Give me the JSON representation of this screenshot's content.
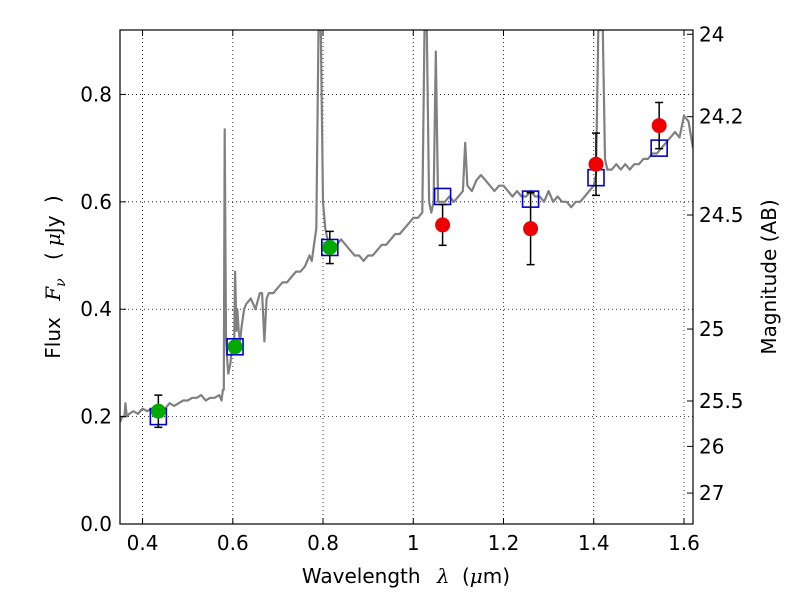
{
  "chart_data": {
    "type": "scatter",
    "xlabel": {
      "text": "Wavelength",
      "symbol": "λ",
      "unit_open": "(",
      "unit_mu": "μ",
      "unit_rest": "m)"
    },
    "ylabel": {
      "text": "Flux",
      "symbol": "F",
      "subscript": "ν",
      "unit_open": "(",
      "unit_mu": "μ",
      "unit_rest": "Jy",
      "unit_close": ")"
    },
    "y2label": "Magnitude (AB)",
    "xlim": [
      0.35,
      1.62
    ],
    "ylim": [
      0.0,
      0.92
    ],
    "grid": true,
    "x_ticks": [
      {
        "value": 0.4,
        "label": "0.4"
      },
      {
        "value": 0.6,
        "label": "0.6"
      },
      {
        "value": 0.8,
        "label": "0.8"
      },
      {
        "value": 1.0,
        "label": "1"
      },
      {
        "value": 1.2,
        "label": "1.2"
      },
      {
        "value": 1.4,
        "label": "1.4"
      },
      {
        "value": 1.6,
        "label": "1.6"
      }
    ],
    "y_ticks": [
      {
        "value": 0.0,
        "label": "0.0"
      },
      {
        "value": 0.2,
        "label": "0.2"
      },
      {
        "value": 0.4,
        "label": "0.4"
      },
      {
        "value": 0.6,
        "label": "0.6"
      },
      {
        "value": 0.8,
        "label": "0.8"
      }
    ],
    "y2_ticks": [
      {
        "value": 24,
        "label": "24"
      },
      {
        "value": 24.2,
        "label": "24.2"
      },
      {
        "value": 24.5,
        "label": "24.5"
      },
      {
        "value": 25,
        "label": "25"
      },
      {
        "value": 25.5,
        "label": "25.5"
      },
      {
        "value": 26,
        "label": "26"
      },
      {
        "value": 27,
        "label": "27"
      }
    ],
    "colors": {
      "spectrum": "#808080",
      "green_points": "#00aa00",
      "red_points": "#ee0000",
      "model_squares": "#0000cc",
      "errorbar": "#000000"
    },
    "spectrum": [
      [
        0.35,
        0.19
      ],
      [
        0.355,
        0.2
      ],
      [
        0.36,
        0.2
      ],
      [
        0.362,
        0.225
      ],
      [
        0.365,
        0.2
      ],
      [
        0.37,
        0.205
      ],
      [
        0.38,
        0.21
      ],
      [
        0.39,
        0.205
      ],
      [
        0.4,
        0.215
      ],
      [
        0.41,
        0.21
      ],
      [
        0.42,
        0.215
      ],
      [
        0.43,
        0.215
      ],
      [
        0.44,
        0.22
      ],
      [
        0.45,
        0.215
      ],
      [
        0.46,
        0.225
      ],
      [
        0.47,
        0.22
      ],
      [
        0.48,
        0.225
      ],
      [
        0.49,
        0.23
      ],
      [
        0.5,
        0.23
      ],
      [
        0.51,
        0.235
      ],
      [
        0.52,
        0.235
      ],
      [
        0.53,
        0.24
      ],
      [
        0.54,
        0.23
      ],
      [
        0.55,
        0.235
      ],
      [
        0.56,
        0.235
      ],
      [
        0.57,
        0.24
      ],
      [
        0.575,
        0.23
      ],
      [
        0.578,
        0.25
      ],
      [
        0.58,
        0.25
      ],
      [
        0.582,
        0.735
      ],
      [
        0.585,
        0.35
      ],
      [
        0.588,
        0.3
      ],
      [
        0.59,
        0.28
      ],
      [
        0.595,
        0.3
      ],
      [
        0.598,
        0.33
      ],
      [
        0.6,
        0.34
      ],
      [
        0.603,
        0.32
      ],
      [
        0.605,
        0.47
      ],
      [
        0.608,
        0.36
      ],
      [
        0.61,
        0.4
      ],
      [
        0.613,
        0.36
      ],
      [
        0.616,
        0.34
      ],
      [
        0.62,
        0.37
      ],
      [
        0.625,
        0.4
      ],
      [
        0.63,
        0.41
      ],
      [
        0.64,
        0.42
      ],
      [
        0.65,
        0.4
      ],
      [
        0.66,
        0.43
      ],
      [
        0.665,
        0.43
      ],
      [
        0.67,
        0.34
      ],
      [
        0.675,
        0.42
      ],
      [
        0.68,
        0.43
      ],
      [
        0.69,
        0.43
      ],
      [
        0.7,
        0.44
      ],
      [
        0.71,
        0.45
      ],
      [
        0.72,
        0.45
      ],
      [
        0.73,
        0.46
      ],
      [
        0.74,
        0.47
      ],
      [
        0.75,
        0.47
      ],
      [
        0.76,
        0.48
      ],
      [
        0.765,
        0.49
      ],
      [
        0.77,
        0.5
      ],
      [
        0.775,
        0.49
      ],
      [
        0.78,
        0.52
      ],
      [
        0.785,
        0.55
      ],
      [
        0.79,
        0.92
      ],
      [
        0.795,
        0.92
      ],
      [
        0.8,
        0.6
      ],
      [
        0.805,
        0.55
      ],
      [
        0.81,
        0.53
      ],
      [
        0.82,
        0.52
      ],
      [
        0.83,
        0.52
      ],
      [
        0.84,
        0.53
      ],
      [
        0.85,
        0.52
      ],
      [
        0.86,
        0.51
      ],
      [
        0.87,
        0.5
      ],
      [
        0.88,
        0.5
      ],
      [
        0.89,
        0.49
      ],
      [
        0.9,
        0.5
      ],
      [
        0.91,
        0.5
      ],
      [
        0.92,
        0.51
      ],
      [
        0.93,
        0.52
      ],
      [
        0.94,
        0.52
      ],
      [
        0.95,
        0.53
      ],
      [
        0.96,
        0.54
      ],
      [
        0.97,
        0.54
      ],
      [
        0.98,
        0.55
      ],
      [
        0.99,
        0.56
      ],
      [
        1.0,
        0.57
      ],
      [
        1.01,
        0.57
      ],
      [
        1.02,
        0.58
      ],
      [
        1.025,
        0.92
      ],
      [
        1.03,
        0.92
      ],
      [
        1.035,
        0.6
      ],
      [
        1.04,
        0.58
      ],
      [
        1.045,
        0.6
      ],
      [
        1.05,
        0.88
      ],
      [
        1.055,
        0.6
      ],
      [
        1.06,
        0.6
      ],
      [
        1.07,
        0.6
      ],
      [
        1.08,
        0.61
      ],
      [
        1.09,
        0.6
      ],
      [
        1.1,
        0.61
      ],
      [
        1.11,
        0.62
      ],
      [
        1.115,
        0.71
      ],
      [
        1.12,
        0.63
      ],
      [
        1.13,
        0.62
      ],
      [
        1.14,
        0.64
      ],
      [
        1.15,
        0.65
      ],
      [
        1.16,
        0.64
      ],
      [
        1.17,
        0.63
      ],
      [
        1.18,
        0.62
      ],
      [
        1.19,
        0.63
      ],
      [
        1.2,
        0.63
      ],
      [
        1.21,
        0.62
      ],
      [
        1.22,
        0.61
      ],
      [
        1.23,
        0.62
      ],
      [
        1.24,
        0.61
      ],
      [
        1.25,
        0.61
      ],
      [
        1.26,
        0.62
      ],
      [
        1.27,
        0.61
      ],
      [
        1.28,
        0.61
      ],
      [
        1.29,
        0.6
      ],
      [
        1.3,
        0.62
      ],
      [
        1.31,
        0.6
      ],
      [
        1.32,
        0.61
      ],
      [
        1.33,
        0.6
      ],
      [
        1.34,
        0.6
      ],
      [
        1.35,
        0.59
      ],
      [
        1.36,
        0.6
      ],
      [
        1.37,
        0.6
      ],
      [
        1.38,
        0.61
      ],
      [
        1.39,
        0.62
      ],
      [
        1.4,
        0.63
      ],
      [
        1.405,
        0.65
      ],
      [
        1.41,
        0.92
      ],
      [
        1.415,
        0.92
      ],
      [
        1.42,
        0.92
      ],
      [
        1.425,
        0.68
      ],
      [
        1.43,
        0.66
      ],
      [
        1.44,
        0.66
      ],
      [
        1.45,
        0.67
      ],
      [
        1.46,
        0.66
      ],
      [
        1.47,
        0.67
      ],
      [
        1.48,
        0.66
      ],
      [
        1.49,
        0.67
      ],
      [
        1.5,
        0.67
      ],
      [
        1.51,
        0.68
      ],
      [
        1.52,
        0.68
      ],
      [
        1.53,
        0.69
      ],
      [
        1.54,
        0.69
      ],
      [
        1.55,
        0.7
      ],
      [
        1.56,
        0.71
      ],
      [
        1.57,
        0.72
      ],
      [
        1.58,
        0.73
      ],
      [
        1.59,
        0.72
      ],
      [
        1.6,
        0.76
      ],
      [
        1.61,
        0.75
      ],
      [
        1.62,
        0.7
      ]
    ],
    "green_points": [
      {
        "x": 0.435,
        "y": 0.21,
        "err": 0.03
      },
      {
        "x": 0.605,
        "y": 0.33,
        "err": 0.01
      },
      {
        "x": 0.815,
        "y": 0.515,
        "err": 0.03
      }
    ],
    "red_points": [
      {
        "x": 1.065,
        "y": 0.557,
        "err": 0.038
      },
      {
        "x": 1.26,
        "y": 0.55,
        "err": 0.067
      },
      {
        "x": 1.405,
        "y": 0.67,
        "err": 0.058
      },
      {
        "x": 1.545,
        "y": 0.742,
        "err": 0.043
      }
    ],
    "model_squares": [
      {
        "x": 0.435,
        "y": 0.2
      },
      {
        "x": 0.605,
        "y": 0.33
      },
      {
        "x": 0.815,
        "y": 0.515
      },
      {
        "x": 1.065,
        "y": 0.61
      },
      {
        "x": 1.26,
        "y": 0.605
      },
      {
        "x": 1.405,
        "y": 0.645
      },
      {
        "x": 1.545,
        "y": 0.7
      }
    ]
  }
}
